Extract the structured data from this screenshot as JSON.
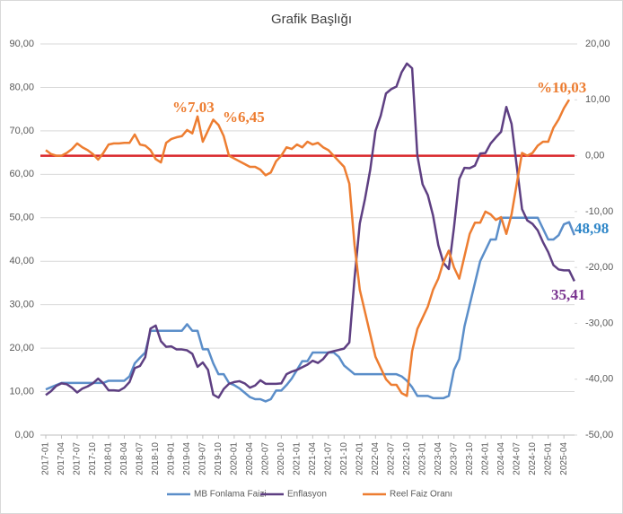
{
  "chart_data": {
    "type": "line",
    "title": "Grafik Başlığı",
    "categories": [
      "2017-01",
      null,
      null,
      "2017-04",
      null,
      null,
      "2017-07",
      null,
      null,
      "2017-10",
      null,
      null,
      "2018-01",
      null,
      null,
      "2018-04",
      null,
      null,
      "2018-07",
      null,
      null,
      "2018-10",
      null,
      null,
      "2019-01",
      null,
      null,
      "2019-04",
      null,
      null,
      "2019-07",
      null,
      null,
      "2019-10",
      null,
      null,
      "2020-01",
      null,
      null,
      "2020-04",
      null,
      null,
      "2020-07",
      null,
      null,
      "2020-10",
      null,
      null,
      "2021-01",
      null,
      null,
      "2021-04",
      null,
      null,
      "2021-07",
      null,
      null,
      "2021-10",
      null,
      null,
      "2022-01",
      null,
      null,
      "2022-04",
      null,
      null,
      "2022-07",
      null,
      null,
      "2022-10",
      null,
      null,
      "2023-01",
      null,
      null,
      "2023-04",
      null,
      null,
      "2023-07",
      null,
      null,
      "2023-10",
      null,
      null,
      "2024-01",
      null,
      null,
      "2024-04",
      null,
      null,
      "2024-07",
      null,
      null,
      "2024-10",
      null,
      null,
      "2025-01",
      null,
      null,
      "2025-04",
      null,
      null
    ],
    "series": [
      {
        "name": "MB Fonlama Faizi",
        "color": "#5b8ec9",
        "values": [
          10.5,
          11,
          11.5,
          12,
          12,
          12,
          12,
          12,
          12,
          12,
          12,
          12,
          12.5,
          12.5,
          12.5,
          12.5,
          13.5,
          16.5,
          17.8,
          19,
          24,
          24,
          24,
          24,
          24,
          24,
          24,
          25.5,
          24,
          24,
          19.75,
          19.75,
          16.5,
          14,
          14,
          12,
          11.5,
          10.75,
          9.75,
          8.75,
          8.25,
          8.25,
          7.75,
          8.25,
          10.25,
          10.25,
          11.5,
          13,
          15,
          17,
          17,
          19,
          19,
          19,
          19,
          19,
          18,
          16,
          15,
          14,
          14,
          14,
          14,
          14,
          14,
          14,
          14,
          14,
          13.5,
          12.5,
          11,
          9,
          9,
          9,
          8.5,
          8.5,
          8.5,
          9,
          15,
          17.5,
          25,
          30,
          35,
          40,
          42.5,
          45,
          45,
          50,
          50,
          50,
          50,
          50,
          50,
          50,
          50,
          47.5,
          45,
          45,
          46,
          48.5,
          48.98,
          46
        ]
      },
      {
        "name": "Enflasyon",
        "color": "#5e3f82",
        "values": [
          9.2,
          10.1,
          11.3,
          11.9,
          11.7,
          10.9,
          9.8,
          10.7,
          11.2,
          11.9,
          13,
          11.9,
          10.3,
          10.3,
          10.2,
          10.9,
          12.2,
          15.4,
          15.9,
          17.9,
          24.5,
          25.2,
          21.6,
          20.3,
          20.4,
          19.7,
          19.7,
          19.5,
          18.7,
          15.7,
          16.7,
          15,
          9.3,
          8.6,
          10.6,
          11.8,
          12.2,
          12.4,
          11.9,
          10.9,
          11.4,
          12.6,
          11.8,
          11.8,
          11.8,
          11.9,
          14,
          14.6,
          15,
          15.6,
          16.2,
          17.1,
          16.6,
          17.5,
          19,
          19.3,
          19.6,
          19.9,
          21.3,
          36.1,
          48.7,
          54.4,
          61.1,
          70,
          73.5,
          78.6,
          79.6,
          80.2,
          83.5,
          85.5,
          84.4,
          64.3,
          57.7,
          55.2,
          50.5,
          43.7,
          39.6,
          38.2,
          47.8,
          58.9,
          61.5,
          61.4,
          62,
          64.8,
          64.9,
          67.1,
          68.5,
          69.8,
          75.5,
          71.6,
          61.8,
          52,
          49.4,
          48.6,
          47.1,
          44.4,
          42.1,
          39.1,
          38.1,
          37.9,
          37.9,
          35.41
        ]
      },
      {
        "name": "Reel Faiz Oranı",
        "color": "#ed7d31",
        "axis": "y2",
        "values": [
          1,
          0.3,
          0,
          0,
          0.5,
          1.2,
          2.2,
          1.5,
          1,
          0.3,
          -0.7,
          0.5,
          2,
          2.2,
          2.2,
          2.3,
          2.3,
          3.8,
          2,
          1.8,
          1,
          -0.6,
          -1.2,
          2.3,
          3,
          3.3,
          3.5,
          4.6,
          4,
          7.03,
          2.5,
          4.5,
          6.45,
          5.5,
          3.5,
          0,
          -0.5,
          -1,
          -1.5,
          -2,
          -2,
          -2.5,
          -3.5,
          -3,
          -1,
          0,
          1.5,
          1.2,
          2,
          1.5,
          2.5,
          2,
          2.3,
          1.5,
          1,
          0,
          -1,
          -2,
          -5,
          -16,
          -24,
          -28,
          -32,
          -36,
          -38,
          -40,
          -41,
          -41,
          -42.5,
          -43,
          -35,
          -31,
          -29,
          -27,
          -24,
          -22,
          -19,
          -17,
          -20,
          -22,
          -18,
          -14,
          -12,
          -12,
          -10,
          -10.5,
          -11.5,
          -11,
          -14,
          -10.5,
          -5,
          0.5,
          0,
          0.5,
          1.8,
          2.5,
          2.5,
          5,
          6.5,
          8.5,
          10.03,
          null
        ]
      }
    ],
    "ylim": [
      0,
      90
    ],
    "yticks": [
      {
        "value": 0,
        "label": "0,00"
      },
      {
        "value": 10,
        "label": "10,00"
      },
      {
        "value": 20,
        "label": "20,00"
      },
      {
        "value": 30,
        "label": "30,00"
      },
      {
        "value": 40,
        "label": "40,00"
      },
      {
        "value": 50,
        "label": "50,00"
      },
      {
        "value": 60,
        "label": "60,00"
      },
      {
        "value": 70,
        "label": "70,00"
      },
      {
        "value": 80,
        "label": "80,00"
      },
      {
        "value": 90,
        "label": "90,00"
      }
    ],
    "y2lim": [
      -50,
      20
    ],
    "y2ticks": [
      {
        "value": -50,
        "label": "-50,00"
      },
      {
        "value": -40,
        "label": "-40,00"
      },
      {
        "value": -30,
        "label": "-30,00"
      },
      {
        "value": -20,
        "label": "-20,00"
      },
      {
        "value": -10,
        "label": "-10,00"
      },
      {
        "value": 0,
        "label": "0,00"
      },
      {
        "value": 10,
        "label": "10,00"
      },
      {
        "value": 20,
        "label": "20,00"
      }
    ],
    "grid": true,
    "legend": "bottom",
    "reference_line": {
      "value": 0,
      "axis": "y2",
      "color": "#d9262a"
    },
    "annotations": [
      {
        "text": "%7.03",
        "color": "#ed7d31"
      },
      {
        "text": "%6,45",
        "color": "#ed7d31"
      },
      {
        "text": "%10,03",
        "color": "#ed7d31"
      },
      {
        "text": "48,98",
        "color": "#2e86c8"
      },
      {
        "text": "35,41",
        "color": "#7a3590"
      }
    ]
  }
}
